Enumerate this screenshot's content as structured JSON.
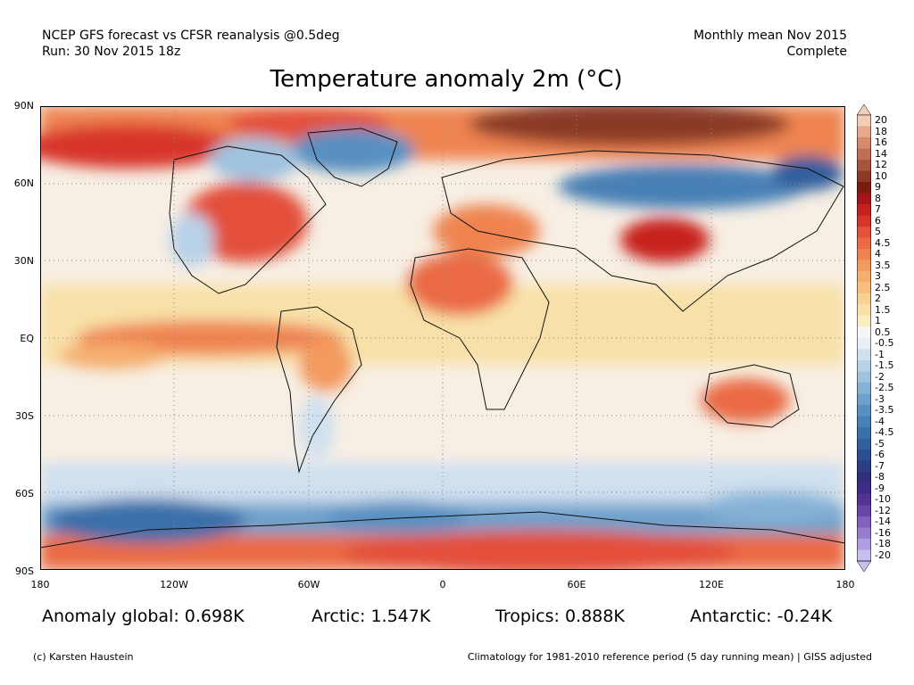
{
  "header": {
    "left_line1": "NCEP GFS forecast vs CFSR reanalysis @0.5deg",
    "left_line2": "Run: 30 Nov 2015 18z",
    "right_line1": "Monthly mean Nov 2015",
    "right_line2": "Complete"
  },
  "title": "Temperature anomaly 2m (°C)",
  "axes": {
    "lat_labels": [
      "90N",
      "60N",
      "30N",
      "EQ",
      "30S",
      "60S",
      "90S"
    ],
    "lon_labels": [
      "180",
      "120W",
      "60W",
      "0",
      "60E",
      "120E",
      "180"
    ]
  },
  "stats": {
    "global": "Anomaly global: 0.698K",
    "arctic": "Arctic: 1.547K",
    "tropics": "Tropics: 0.888K",
    "antarctic": "Antarctic: -0.24K"
  },
  "footer": {
    "credit": "(c) Karsten Haustein",
    "climatology": "Climatology for 1981-2010 reference period (5 day running mean) | GISS adjusted"
  },
  "colorbar": {
    "labels": [
      "20",
      "18",
      "16",
      "14",
      "12",
      "10",
      "9",
      "8",
      "7",
      "6",
      "5",
      "4.5",
      "4",
      "3.5",
      "3",
      "2.5",
      "2",
      "1.5",
      "1",
      "0.5",
      "-0.5",
      "-1",
      "-1.5",
      "-2",
      "-2.5",
      "-3",
      "-3.5",
      "-4",
      "-4.5",
      "-5",
      "-6",
      "-7",
      "-8",
      "-9",
      "-10",
      "-12",
      "-14",
      "-16",
      "-18",
      "-20"
    ],
    "colors": [
      "#f3cdb8",
      "#e7a98d",
      "#d48a6d",
      "#c06f55",
      "#a5553e",
      "#8a3a26",
      "#7a1a10",
      "#a8141a",
      "#c8201e",
      "#d8352a",
      "#e3503b",
      "#ea6a45",
      "#ef8451",
      "#f39a5f",
      "#f5ae6e",
      "#f7c080",
      "#f8d293",
      "#f8e1a8",
      "#f9edc4",
      "#f6f6f6",
      "#e6eff6",
      "#cfe0ef",
      "#b8d2e8",
      "#9fc2df",
      "#86b2d6",
      "#6ea1cb",
      "#5890c1",
      "#4680b6",
      "#3a70aa",
      "#325f9e",
      "#2d4e92",
      "#2b3e85",
      "#2f2f7a",
      "#3f2c86",
      "#533394",
      "#6a45aa",
      "#8160c0",
      "#987ccf",
      "#b09ddf",
      "#c9bfee"
    ]
  }
}
